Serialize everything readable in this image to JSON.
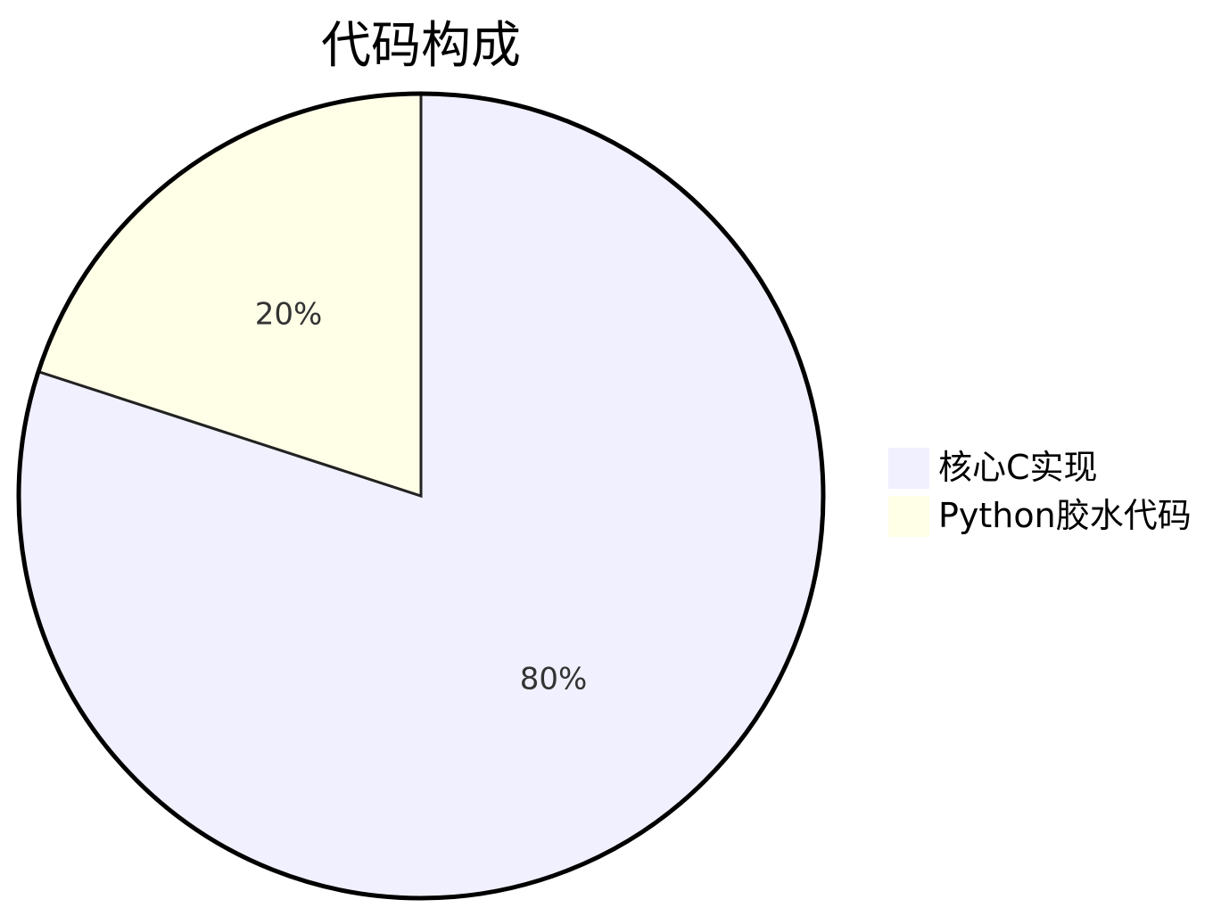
{
  "chart_data": {
    "type": "pie",
    "title": "代码构成",
    "categories": [
      "核心C实现",
      "Python胶水代码"
    ],
    "values": [
      80,
      20
    ],
    "unit": "%",
    "labels": [
      "80%",
      "20%"
    ],
    "colors": [
      "#f0f0ff",
      "#ffffe8"
    ],
    "start_angle_deg": 0,
    "direction": "clockwise",
    "legend_position": "right",
    "border_color": "#000000"
  }
}
